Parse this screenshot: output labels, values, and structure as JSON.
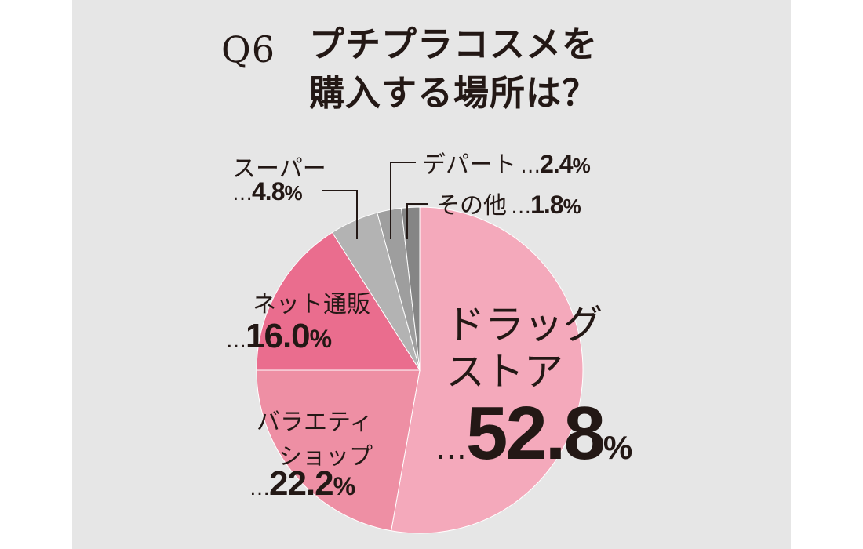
{
  "header": {
    "q": "Q6",
    "title": "プチプラコスメを\n購入する場所は？"
  },
  "chart_data": {
    "type": "pie",
    "categories": [
      "ドラッグストア",
      "バラエティショップ",
      "ネット通販",
      "スーパー",
      "デパート",
      "その他"
    ],
    "values": [
      52.8,
      22.2,
      16.0,
      4.8,
      2.4,
      1.8
    ],
    "colors": [
      "#f4a9bb",
      "#ee8fa4",
      "#ea6d8e",
      "#b3b3b3",
      "#9e9e9e",
      "#858585"
    ],
    "labels": [
      {
        "name1": "ドラッグ",
        "name2": "ストア",
        "dots": "…",
        "num": "52.8",
        "pct": "%"
      },
      {
        "name1": "バラエティ",
        "name2": "ショップ",
        "dots": "…",
        "num": "22.2",
        "pct": "%"
      },
      {
        "name1": "ネット通販",
        "dots": "…",
        "num": "16.0",
        "pct": "%"
      },
      {
        "name1": "スーパー",
        "dots": "…",
        "num": "4.8",
        "pct": "%"
      },
      {
        "name1": "デパート",
        "dots": "…",
        "num": "2.4",
        "pct": "%"
      },
      {
        "name1": "その他",
        "dots": "…",
        "num": "1.8",
        "pct": "%"
      }
    ]
  }
}
